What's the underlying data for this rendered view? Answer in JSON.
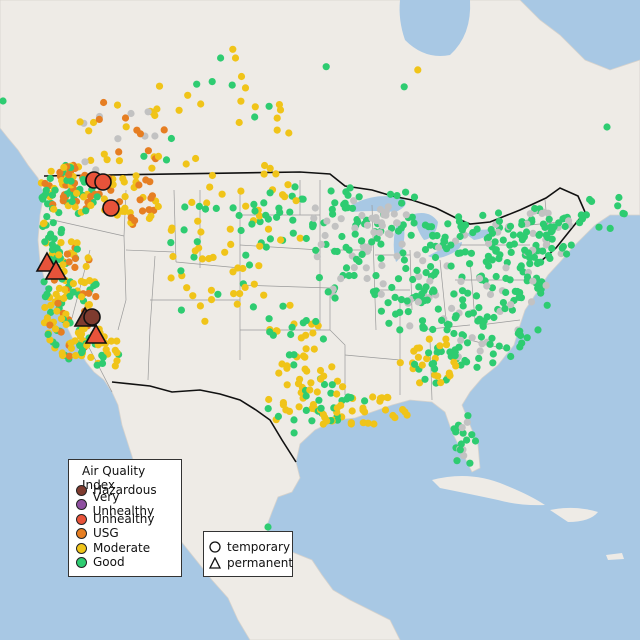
{
  "legend": {
    "title": "Air Quality Index",
    "categories": [
      {
        "label": "Hazardous",
        "color": "#7e3b2f"
      },
      {
        "label": "Very Unhealthy",
        "color": "#8e4fa0"
      },
      {
        "label": "Unhealthy",
        "color": "#e8533a"
      },
      {
        "label": "USG",
        "color": "#e67e22"
      },
      {
        "label": "Moderate",
        "color": "#f0c419"
      },
      {
        "label": "Good",
        "color": "#2ecc71"
      }
    ],
    "symbol_types": [
      {
        "label": "temporary",
        "shape": "circle"
      },
      {
        "label": "permanent",
        "shape": "triangle"
      }
    ]
  },
  "colors": {
    "water": "#a8c8e4",
    "land": "#eeebe6",
    "border": "#111111",
    "state_lines": "#9a9a9a",
    "no_data": "#c2c2c2"
  }
}
